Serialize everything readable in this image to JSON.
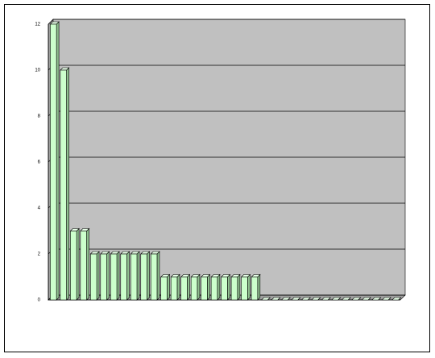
{
  "chart_data": {
    "type": "bar",
    "categories": [
      null,
      null,
      null,
      null,
      null,
      null,
      null,
      null,
      null,
      null,
      null,
      null,
      null,
      null,
      null,
      null,
      null,
      null,
      null,
      null,
      null,
      null,
      null,
      null,
      null,
      null,
      null,
      null,
      null,
      null,
      null,
      null,
      null,
      null,
      null
    ],
    "values": [
      12,
      10,
      3,
      3,
      2,
      2,
      2,
      2,
      2,
      2,
      2,
      1,
      1,
      1,
      1,
      1,
      1,
      1,
      1,
      1,
      1,
      0,
      0,
      0,
      0,
      0,
      0,
      0,
      0,
      0,
      0,
      0,
      0,
      0,
      0
    ],
    "color": "#ccffcc",
    "ylim": [
      0,
      12
    ],
    "yticks": [
      0,
      2,
      4,
      6,
      8,
      10,
      12
    ],
    "grid": true
  }
}
